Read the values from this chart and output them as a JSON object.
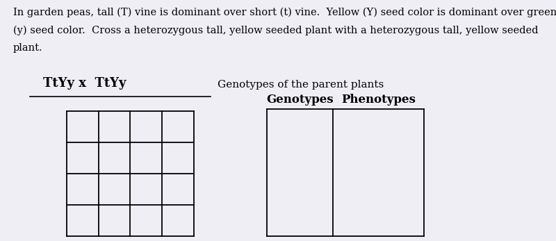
{
  "background_color": "#f0eef5",
  "text_color": "#000000",
  "para_line1": "In garden peas, tall (T) vine is dominant over short (t) vine.  Yellow (Y) seed color is dominant over green",
  "para_line2": "(y) seed color.  Cross a heterozygous tall, yellow seeded plant with a heterozygous tall, yellow seeded",
  "para_line3": "plant.",
  "genotype_label": "TtYy x  TtYy",
  "genotype_sublabel": "Genotypes of the parent plants",
  "col_header1": "Genotypes",
  "col_header2": "Phenotypes",
  "grid_rows": 4,
  "grid_cols": 4,
  "line_color": "#000000",
  "font_size_para": 10.5,
  "font_size_genotype": 13,
  "font_size_label": 11,
  "font_size_header": 12
}
